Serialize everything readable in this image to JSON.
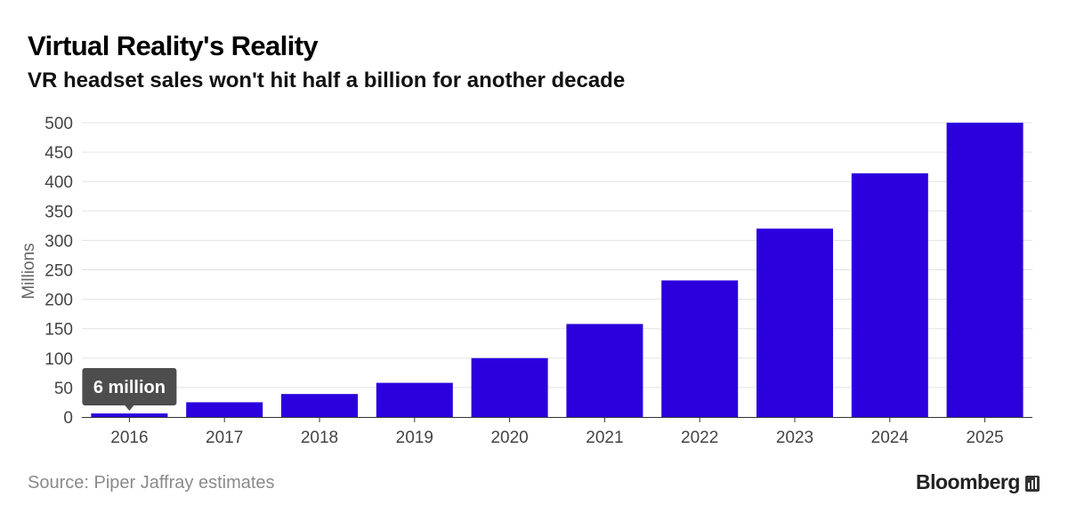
{
  "header": {
    "title": "Virtual Reality's Reality",
    "subtitle": "VR headset sales won't hit half a billion for another decade"
  },
  "chart_data": {
    "type": "bar",
    "title": "Virtual Reality's Reality",
    "subtitle": "VR headset sales won't hit half a billion for another decade",
    "categories": [
      "2016",
      "2017",
      "2018",
      "2019",
      "2020",
      "2021",
      "2022",
      "2023",
      "2024",
      "2025"
    ],
    "values": [
      6,
      25,
      39,
      58,
      100,
      158,
      232,
      320,
      414,
      500
    ],
    "xlabel": "",
    "ylabel": "Millions",
    "ylim": [
      0,
      500
    ],
    "yticks": [
      0,
      50,
      100,
      150,
      200,
      250,
      300,
      350,
      400,
      450,
      500
    ],
    "grid": true,
    "bar_color": "#2b00dd",
    "annotation": {
      "category": "2016",
      "text": "6 million",
      "color": "#4d4d4d"
    }
  },
  "footer": {
    "source": "Source: Piper Jaffray estimates",
    "brand": "Bloomberg"
  },
  "icons": {
    "brand_icon": "bloomberg-terminal-icon"
  }
}
